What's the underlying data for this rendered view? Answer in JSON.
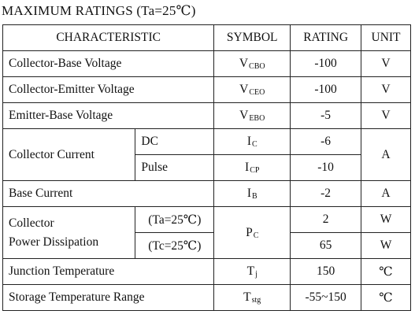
{
  "title": "MAXIMUM RATINGS (Ta=25℃)",
  "header": {
    "characteristic": "CHARACTERISTIC",
    "symbol": "SYMBOL",
    "rating": "RATING",
    "unit": "UNIT"
  },
  "rows": {
    "vcbo": {
      "characteristic": "Collector-Base Voltage",
      "symbol_main": "V",
      "symbol_sub": "CBO",
      "rating": "-100",
      "unit": "V"
    },
    "vceo": {
      "characteristic": "Collector-Emitter Voltage",
      "symbol_main": "V",
      "symbol_sub": "CEO",
      "rating": "-100",
      "unit": "V"
    },
    "vebo": {
      "characteristic": "Emitter-Base Voltage",
      "symbol_main": "V",
      "symbol_sub": "EBO",
      "rating": "-5",
      "unit": "V"
    },
    "collector_current": {
      "characteristic": "Collector Current",
      "unit": "A",
      "dc": {
        "condition": "DC",
        "symbol_main": "I",
        "symbol_sub": "C",
        "rating": "-6"
      },
      "pulse": {
        "condition": "Pulse",
        "symbol_main": "I",
        "symbol_sub": "CP",
        "rating": "-10"
      }
    },
    "base_current": {
      "characteristic": "Base Current",
      "symbol_main": "I",
      "symbol_sub": "B",
      "rating": "-2",
      "unit": "A"
    },
    "power": {
      "characteristic_line1": "Collector",
      "characteristic_line2": "Power Dissipation",
      "symbol_main": "P",
      "symbol_sub": "C",
      "ta": {
        "condition": "(Ta=25℃)",
        "rating": "2",
        "unit": "W"
      },
      "tc": {
        "condition": "(Tc=25℃)",
        "rating": "65",
        "unit": "W"
      }
    },
    "tj": {
      "characteristic": "Junction Temperature",
      "symbol_main": "T",
      "symbol_sub": "j",
      "rating": "150",
      "unit": "℃"
    },
    "tstg": {
      "characteristic": "Storage Temperature Range",
      "symbol_main": "T",
      "symbol_sub": "stg",
      "rating": "-55~150",
      "unit": "℃"
    }
  }
}
